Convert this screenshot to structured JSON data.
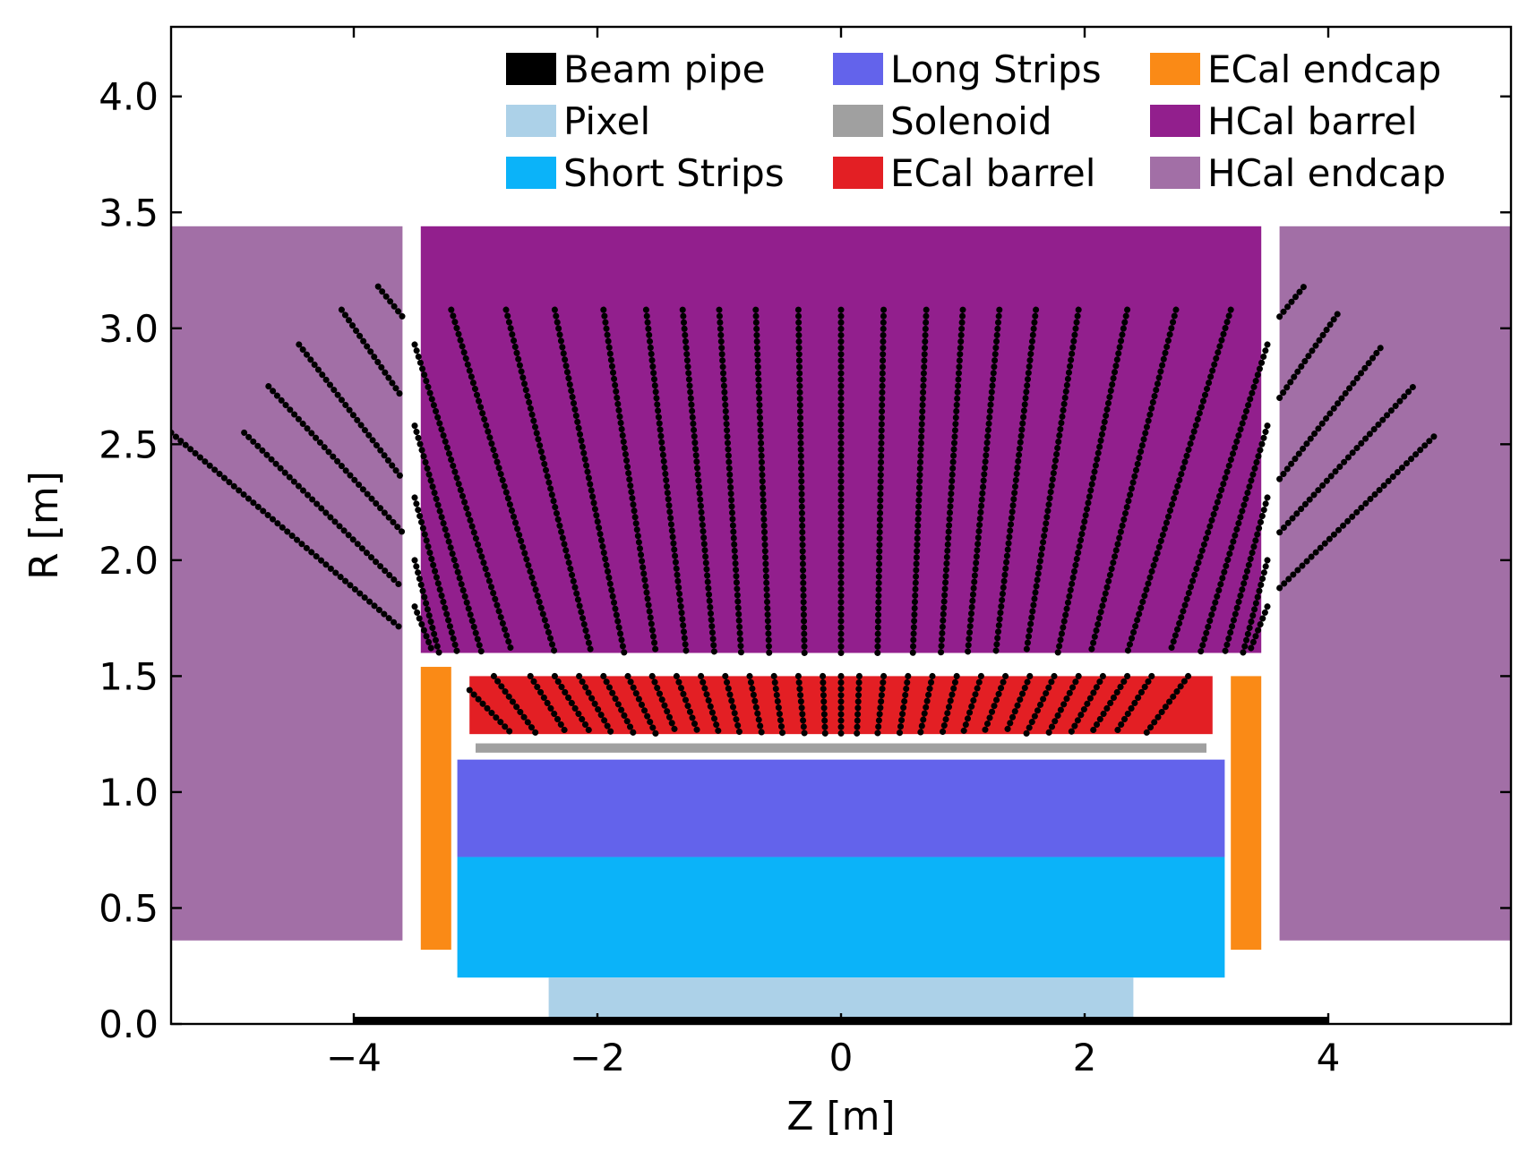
{
  "chart_data": {
    "type": "detector-layout",
    "title": "",
    "xlabel": "Z [m]",
    "ylabel": "R [m]",
    "xlim": [
      -5.5,
      5.5
    ],
    "ylim": [
      0,
      4.3
    ],
    "xticks": [
      -4,
      -2,
      0,
      2,
      4
    ],
    "xtick_labels": [
      "−4",
      "−2",
      "0",
      "2",
      "4"
    ],
    "yticks": [
      0.0,
      0.5,
      1.0,
      1.5,
      2.0,
      2.5,
      3.0,
      3.5,
      4.0
    ],
    "ytick_labels": [
      "0.0",
      "0.5",
      "1.0",
      "1.5",
      "2.0",
      "2.5",
      "3.0",
      "3.5",
      "4.0"
    ],
    "grid": false,
    "legend_position": "top-right",
    "legend_columns": 3,
    "regions": [
      {
        "name": "Beam pipe",
        "color": "#000000",
        "boxes": [
          {
            "z": [
              -4.0,
              4.0
            ],
            "r": [
              0.0,
              0.025
            ]
          }
        ]
      },
      {
        "name": "Pixel",
        "color": "#acd1e8",
        "boxes": [
          {
            "z": [
              -2.4,
              2.4
            ],
            "r": [
              0.025,
              0.2
            ]
          }
        ]
      },
      {
        "name": "Short Strips",
        "color": "#0bb3f9",
        "boxes": [
          {
            "z": [
              -3.15,
              3.15
            ],
            "r": [
              0.2,
              0.72
            ]
          }
        ]
      },
      {
        "name": "Long Strips",
        "color": "#6363eb",
        "boxes": [
          {
            "z": [
              -3.15,
              3.15
            ],
            "r": [
              0.72,
              1.14
            ]
          }
        ]
      },
      {
        "name": "Solenoid",
        "color": "#a0a0a0",
        "boxes": [
          {
            "z": [
              -3.0,
              3.0
            ],
            "r": [
              1.17,
              1.21
            ]
          }
        ]
      },
      {
        "name": "ECal barrel",
        "color": "#e31f24",
        "boxes": [
          {
            "z": [
              -3.05,
              3.05
            ],
            "r": [
              1.25,
              1.5
            ]
          }
        ]
      },
      {
        "name": "ECal endcap",
        "color": "#fa8a16",
        "boxes": [
          {
            "z": [
              -3.45,
              -3.2
            ],
            "r": [
              0.32,
              1.54
            ]
          },
          {
            "z": [
              3.2,
              3.45
            ],
            "r": [
              0.32,
              1.5
            ]
          }
        ]
      },
      {
        "name": "HCal barrel",
        "color": "#921f8d",
        "boxes": [
          {
            "z": [
              -3.45,
              3.45
            ],
            "r": [
              1.6,
              3.44
            ]
          }
        ]
      },
      {
        "name": "HCal endcap",
        "color": "#a26fa6",
        "boxes": [
          {
            "z": [
              -5.5,
              -3.6
            ],
            "r": [
              0.36,
              3.44
            ]
          },
          {
            "z": [
              3.6,
              5.5
            ],
            "r": [
              0.36,
              3.44
            ]
          }
        ]
      }
    ],
    "tracks": {
      "color": "#000000",
      "ecal_barrel": [
        [
          -3.05,
          1.44,
          -2.7,
          1.25
        ],
        [
          -2.85,
          1.5,
          -2.5,
          1.25
        ],
        [
          -2.55,
          1.5,
          -2.25,
          1.25
        ],
        [
          -2.35,
          1.5,
          -2.05,
          1.25
        ],
        [
          -2.15,
          1.5,
          -1.88,
          1.25
        ],
        [
          -1.95,
          1.5,
          -1.7,
          1.25
        ],
        [
          -1.75,
          1.5,
          -1.52,
          1.25
        ],
        [
          -1.55,
          1.5,
          -1.35,
          1.25
        ],
        [
          -1.35,
          1.5,
          -1.17,
          1.25
        ],
        [
          -1.15,
          1.5,
          -1.0,
          1.25
        ],
        [
          -0.95,
          1.5,
          -0.83,
          1.25
        ],
        [
          -0.75,
          1.5,
          -0.65,
          1.25
        ],
        [
          -0.55,
          1.5,
          -0.48,
          1.25
        ],
        [
          -0.35,
          1.5,
          -0.3,
          1.25
        ],
        [
          -0.15,
          1.5,
          -0.13,
          1.25
        ],
        [
          0.0,
          1.5,
          0.0,
          1.25
        ],
        [
          0.15,
          1.5,
          0.13,
          1.25
        ],
        [
          0.35,
          1.5,
          0.3,
          1.25
        ],
        [
          0.55,
          1.5,
          0.48,
          1.25
        ],
        [
          0.75,
          1.5,
          0.65,
          1.25
        ],
        [
          0.95,
          1.5,
          0.83,
          1.25
        ],
        [
          1.15,
          1.5,
          1.0,
          1.25
        ],
        [
          1.35,
          1.5,
          1.17,
          1.25
        ],
        [
          1.55,
          1.5,
          1.35,
          1.25
        ],
        [
          1.75,
          1.5,
          1.52,
          1.25
        ],
        [
          1.95,
          1.5,
          1.7,
          1.25
        ],
        [
          2.15,
          1.5,
          1.88,
          1.25
        ],
        [
          2.35,
          1.5,
          2.05,
          1.25
        ],
        [
          2.55,
          1.5,
          2.25,
          1.25
        ],
        [
          2.85,
          1.5,
          2.5,
          1.25
        ]
      ],
      "hcal_barrel": [
        [
          -3.5,
          2.93,
          -2.7,
          1.6
        ],
        [
          -3.5,
          2.58,
          -2.95,
          1.6
        ],
        [
          -3.5,
          2.27,
          -3.15,
          1.6
        ],
        [
          -3.5,
          2.0,
          -3.3,
          1.6
        ],
        [
          -3.5,
          1.8,
          -3.35,
          1.6
        ],
        [
          -3.2,
          3.08,
          -2.35,
          1.6
        ],
        [
          -2.75,
          3.08,
          -2.05,
          1.6
        ],
        [
          -2.35,
          3.08,
          -1.78,
          1.6
        ],
        [
          -1.95,
          3.08,
          -1.52,
          1.6
        ],
        [
          -1.6,
          3.08,
          -1.27,
          1.6
        ],
        [
          -1.3,
          3.08,
          -1.04,
          1.6
        ],
        [
          -1.0,
          3.08,
          -0.82,
          1.6
        ],
        [
          -0.7,
          3.08,
          -0.59,
          1.6
        ],
        [
          -0.35,
          3.08,
          -0.3,
          1.6
        ],
        [
          0.0,
          3.08,
          0.0,
          1.6
        ],
        [
          0.35,
          3.08,
          0.3,
          1.6
        ],
        [
          0.7,
          3.08,
          0.59,
          1.6
        ],
        [
          1.0,
          3.08,
          0.82,
          1.6
        ],
        [
          1.3,
          3.08,
          1.04,
          1.6
        ],
        [
          1.6,
          3.08,
          1.27,
          1.6
        ],
        [
          1.95,
          3.08,
          1.52,
          1.6
        ],
        [
          2.35,
          3.08,
          1.78,
          1.6
        ],
        [
          2.75,
          3.08,
          2.05,
          1.6
        ],
        [
          3.2,
          3.08,
          2.35,
          1.6
        ],
        [
          3.5,
          2.93,
          2.7,
          1.6
        ],
        [
          3.5,
          2.58,
          2.95,
          1.6
        ],
        [
          3.5,
          2.27,
          3.15,
          1.6
        ],
        [
          3.5,
          2.0,
          3.3,
          1.6
        ],
        [
          3.5,
          1.8,
          3.35,
          1.6
        ]
      ],
      "hcal_endcap": [
        [
          -5.5,
          2.55,
          -3.6,
          1.7
        ],
        [
          -4.9,
          2.55,
          -3.6,
          1.88
        ],
        [
          -4.7,
          2.75,
          -3.6,
          2.12
        ],
        [
          -4.45,
          2.93,
          -3.6,
          2.35
        ],
        [
          -4.1,
          3.08,
          -3.6,
          2.7
        ],
        [
          -3.8,
          3.18,
          -3.6,
          3.05
        ],
        [
          3.6,
          1.88,
          4.9,
          2.55
        ],
        [
          3.6,
          2.12,
          4.7,
          2.75
        ],
        [
          3.6,
          2.35,
          4.45,
          2.93
        ],
        [
          3.6,
          2.7,
          4.1,
          3.08
        ],
        [
          3.6,
          3.05,
          3.8,
          3.18
        ]
      ]
    }
  }
}
